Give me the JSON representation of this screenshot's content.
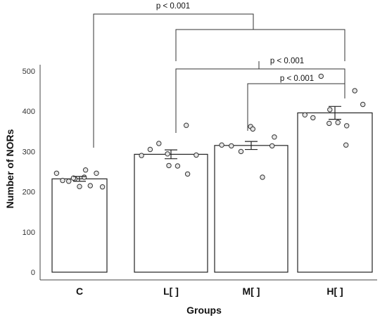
{
  "chart_data": {
    "type": "bar",
    "categories": [
      "C",
      "L[ ]",
      "M[ ]",
      "H[ ]"
    ],
    "values": [
      232,
      293,
      315,
      396
    ],
    "error": [
      6,
      11,
      10,
      16
    ],
    "points": [
      [
        246,
        228,
        226,
        232,
        234,
        213,
        254,
        236,
        215,
        246,
        212
      ],
      [
        290,
        305,
        320,
        294,
        265,
        264,
        365,
        244,
        291
      ],
      [
        316,
        314,
        300,
        362,
        356,
        236,
        314,
        336
      ],
      [
        391,
        384,
        487,
        370,
        404,
        372,
        316,
        364,
        451,
        417
      ]
    ],
    "xlabel": "Groups",
    "ylabel": "Number of NORs",
    "ylim": [
      0,
      500
    ],
    "yticks": [
      0,
      100,
      200,
      300,
      400,
      500
    ],
    "comparisons": [
      {
        "label": "p < 0.001",
        "from": 0,
        "to": "L[ ]–H[ ]"
      },
      {
        "label": "p < 0.001",
        "from": 1,
        "to": 3
      },
      {
        "label": "p < 0.001",
        "from": 2,
        "to": 3
      }
    ],
    "grid": false,
    "legend": "none",
    "colors": {
      "bar_fill": "#ffffff",
      "stroke": "#222222",
      "point_fill": "#e6e6e6"
    }
  }
}
